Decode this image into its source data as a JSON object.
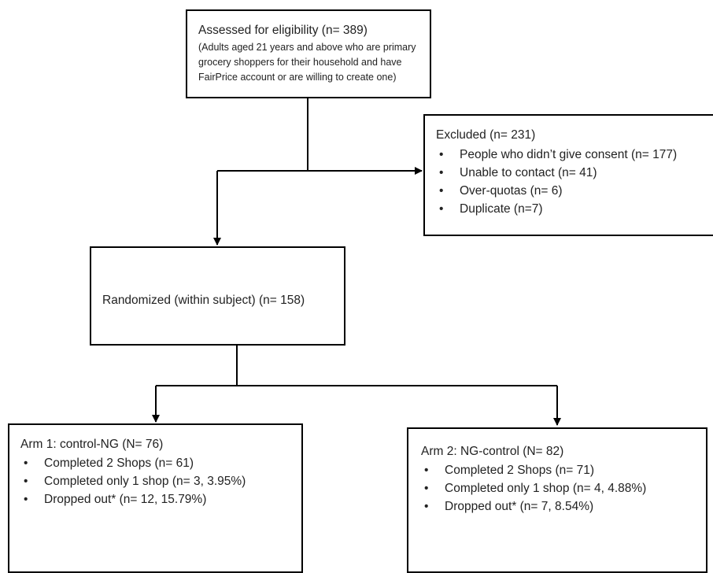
{
  "assessed": {
    "title": "Assessed for eligibility (n= 389)",
    "note": "(Adults aged 21 years and above who are primary grocery shoppers for their household and have FairPrice account or are willing to create one)"
  },
  "excluded": {
    "title": "Excluded (n= 231)",
    "items": [
      "People who didn’t give consent (n= 177)",
      "Unable to contact (n= 41)",
      "Over-quotas (n= 6)",
      "Duplicate (n=7)"
    ]
  },
  "randomized": {
    "title": "Randomized (within subject) (n= 158)"
  },
  "arm1": {
    "title": "Arm 1: control-NG (N= 76)",
    "items": [
      "Completed 2 Shops (n= 61)",
      "Completed only 1 shop (n= 3, 3.95%)",
      "Dropped out* (n= 12, 15.79%)"
    ]
  },
  "arm2": {
    "title": "Arm 2: NG-control (N= 82)",
    "items": [
      "Completed 2 Shops (n= 71)",
      "Completed only 1 shop (n= 4, 4.88%)",
      "Dropped out* (n= 7, 8.54%)"
    ]
  },
  "bullet": "•"
}
